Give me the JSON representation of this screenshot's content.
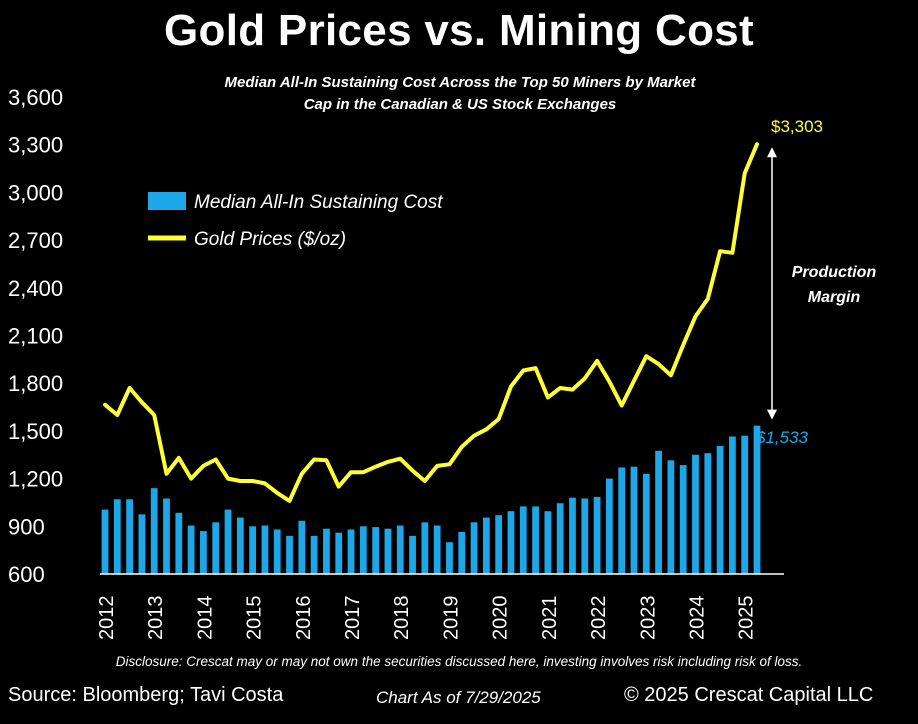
{
  "chart_data": {
    "type": "bar+line",
    "title": "Gold Prices vs. Mining Cost",
    "subtitle_line1": "Median All-In Sustaining Cost Across the Top 50 Miners by Market",
    "subtitle_line2": "Cap in the Canadian & US Stock Exchanges",
    "ylim": [
      600,
      3600
    ],
    "yticks": [
      "3,600",
      "3,300",
      "3,000",
      "2,700",
      "2,400",
      "2,100",
      "1,800",
      "1,500",
      "1,200",
      "900",
      "600"
    ],
    "xticks": [
      "2012",
      "2013",
      "2014",
      "2015",
      "2016",
      "2017",
      "2018",
      "2019",
      "2020",
      "2021",
      "2022",
      "2023",
      "2024",
      "2025"
    ],
    "x_start": 2012.0,
    "x_step": 0.25,
    "legend": {
      "placement": "top-left"
    },
    "series": [
      {
        "name": "Median All-In Sustaining Cost",
        "type": "bar",
        "color": "#1ea7e8",
        "values": [
          1005,
          1070,
          1070,
          975,
          1140,
          1075,
          985,
          905,
          870,
          925,
          1005,
          955,
          900,
          905,
          880,
          840,
          935,
          840,
          885,
          860,
          880,
          900,
          895,
          885,
          905,
          840,
          925,
          905,
          800,
          865,
          925,
          955,
          970,
          995,
          1025,
          1025,
          995,
          1045,
          1080,
          1075,
          1085,
          1200,
          1270,
          1275,
          1230,
          1375,
          1315,
          1285,
          1350,
          1360,
          1405,
          1465,
          1470,
          1533
        ]
      },
      {
        "name": "Gold Prices ($/oz)",
        "type": "line",
        "color": "#ffff33",
        "values": [
          1665,
          1600,
          1770,
          1680,
          1600,
          1230,
          1330,
          1200,
          1280,
          1320,
          1200,
          1185,
          1185,
          1170,
          1110,
          1060,
          1230,
          1320,
          1315,
          1150,
          1240,
          1240,
          1275,
          1305,
          1325,
          1250,
          1185,
          1280,
          1290,
          1400,
          1470,
          1510,
          1575,
          1780,
          1880,
          1895,
          1710,
          1770,
          1760,
          1830,
          1940,
          1810,
          1660,
          1815,
          1970,
          1920,
          1850,
          2040,
          2220,
          2330,
          2630,
          2620,
          3120,
          3303
        ]
      }
    ],
    "annotations": {
      "gold_end_label": "$3,303",
      "cost_end_label": "$1,533",
      "margin_label_line1": "Production",
      "margin_label_line2": "Margin"
    }
  },
  "disclosure": "Disclosure: Crescat may or may not own the securities discussed here, investing involves risk including risk of loss.",
  "footer": {
    "source": "Source: Bloomberg; Tavi Costa",
    "as_of": "Chart As of 7/29/2025",
    "copyright": "© 2025 Crescat Capital LLC"
  }
}
